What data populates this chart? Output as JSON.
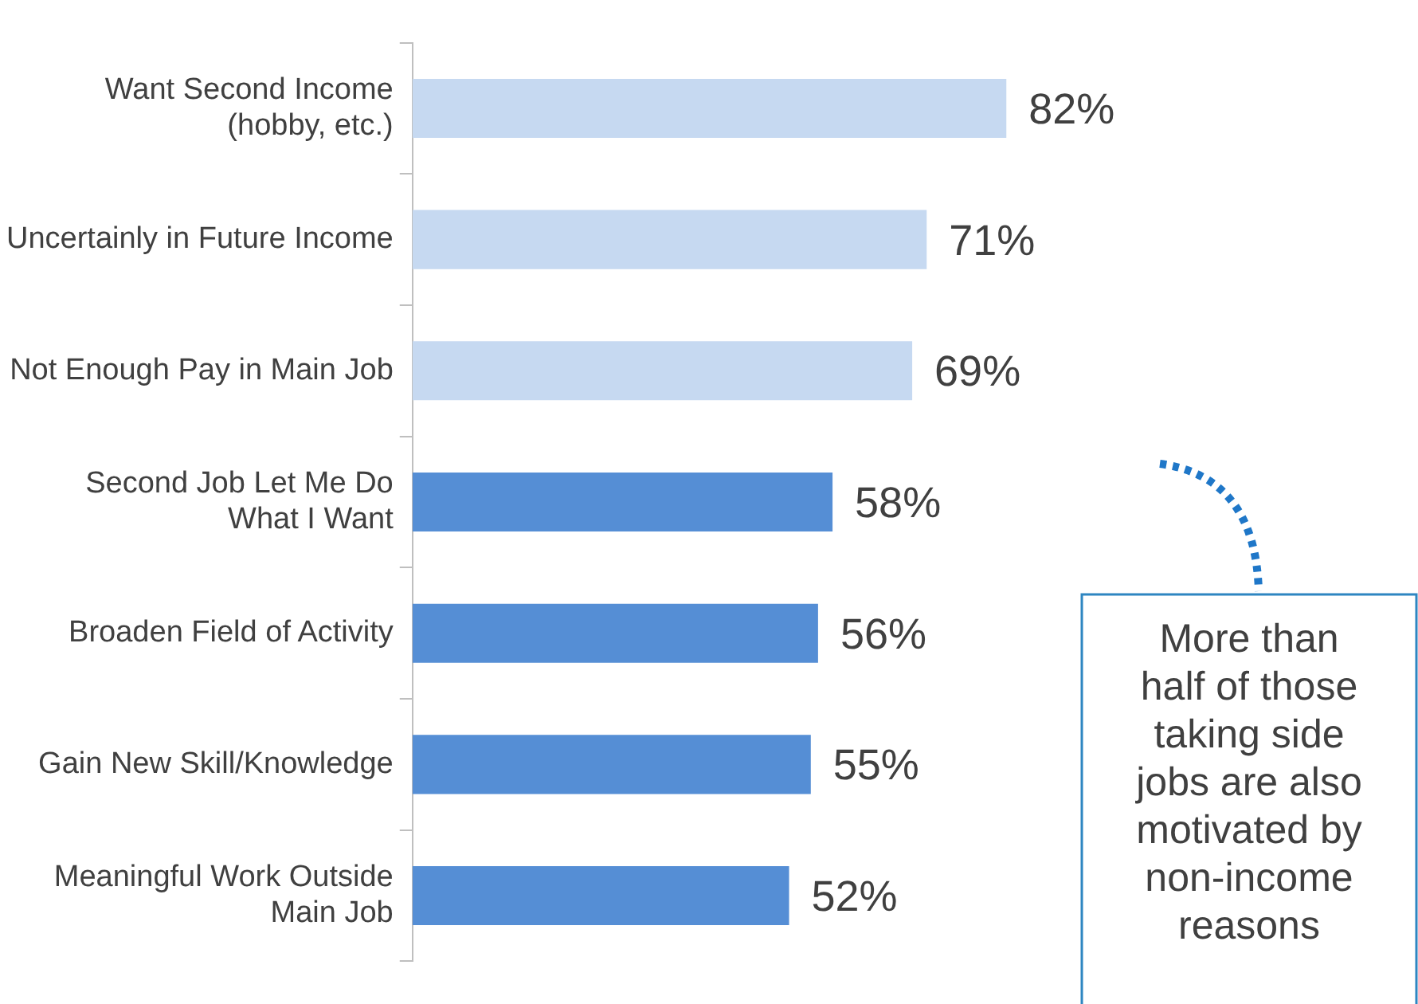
{
  "chart_data": {
    "type": "bar",
    "orientation": "horizontal",
    "categories": [
      "Want Second Income\n(hobby, etc.)",
      "Uncertainly in Future Income",
      "Not Enough Pay in Main Job",
      "Second Job Let Me Do\nWhat I Want",
      "Broaden Field of Activity",
      "Gain New Skill/Knowledge",
      "Meaningful Work Outside\nMain Job"
    ],
    "values": [
      82,
      71,
      69,
      58,
      56,
      55,
      52
    ],
    "colors": [
      "#c6d9f1",
      "#c6d9f1",
      "#c6d9f1",
      "#558ed5",
      "#558ed5",
      "#558ed5",
      "#558ed5"
    ],
    "value_labels": [
      "82%",
      "71%",
      "69%",
      "58%",
      "56%",
      "55%",
      "52%"
    ],
    "annotations": [
      "More than half of those taking side jobs are also motivated by non-income reasons"
    ],
    "legend": false
  }
}
